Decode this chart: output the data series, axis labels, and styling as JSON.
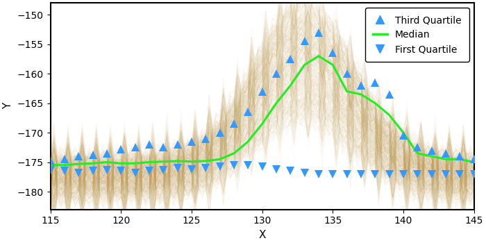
{
  "x_min": 115,
  "x_max": 145,
  "y_min": -183,
  "y_max": -148,
  "xlabel": "X",
  "ylabel": "Y",
  "background_color": "#ffffff",
  "line_color": "#c8a050",
  "line_alpha": 0.06,
  "n_lines": 500,
  "median_color": "#22ee22",
  "median_linewidth": 2.2,
  "quartile_color": "#3399ff",
  "marker_size": 8,
  "legend_loc": "upper right",
  "xticks": [
    115,
    120,
    125,
    130,
    135,
    140,
    145
  ],
  "yticks": [
    -150,
    -155,
    -160,
    -165,
    -170,
    -175,
    -180
  ],
  "median_x": [
    115,
    116,
    117,
    118,
    119,
    120,
    121,
    122,
    123,
    124,
    125,
    126,
    127,
    128,
    129,
    130,
    131,
    132,
    133,
    134,
    135,
    136,
    137,
    138,
    139,
    140,
    141,
    142,
    143,
    144,
    145
  ],
  "median_y": [
    -175.5,
    -175.5,
    -175.3,
    -175.2,
    -175.0,
    -175.2,
    -175.2,
    -175.0,
    -174.9,
    -174.8,
    -174.9,
    -174.8,
    -174.5,
    -173.5,
    -171.5,
    -168.5,
    -165.0,
    -162.0,
    -158.5,
    -157.0,
    -158.5,
    -163.0,
    -163.5,
    -165.0,
    -167.0,
    -170.0,
    -173.5,
    -174.0,
    -174.5,
    -174.5,
    -175.0
  ],
  "q3_x": [
    115,
    116,
    117,
    118,
    119,
    120,
    121,
    122,
    123,
    124,
    125,
    126,
    127,
    128,
    129,
    130,
    131,
    132,
    133,
    134,
    135,
    136,
    137,
    138,
    139,
    140,
    141,
    142,
    143,
    144,
    145
  ],
  "q3_y": [
    -174.8,
    -174.5,
    -174.0,
    -173.8,
    -173.5,
    -172.8,
    -172.5,
    -172.0,
    -172.5,
    -172.0,
    -171.5,
    -171.0,
    -170.0,
    -168.5,
    -166.5,
    -163.0,
    -160.0,
    -157.5,
    -154.5,
    -153.0,
    -156.5,
    -160.0,
    -162.0,
    -161.5,
    -163.5,
    -170.5,
    -172.5,
    -173.0,
    -173.5,
    -174.0,
    -174.5
  ],
  "q1_x": [
    115,
    116,
    117,
    118,
    119,
    120,
    121,
    122,
    123,
    124,
    125,
    126,
    127,
    128,
    129,
    130,
    131,
    132,
    133,
    134,
    135,
    136,
    137,
    138,
    139,
    140,
    141,
    142,
    143,
    144,
    145
  ],
  "q1_y": [
    -176.3,
    -176.5,
    -176.8,
    -176.5,
    -176.3,
    -176.5,
    -176.8,
    -176.5,
    -176.3,
    -176.0,
    -176.2,
    -176.0,
    -175.8,
    -175.5,
    -175.5,
    -175.8,
    -176.2,
    -176.5,
    -176.8,
    -177.0,
    -177.0,
    -177.0,
    -177.0,
    -177.0,
    -177.0,
    -177.0,
    -177.0,
    -177.0,
    -177.0,
    -177.0,
    -177.0
  ]
}
